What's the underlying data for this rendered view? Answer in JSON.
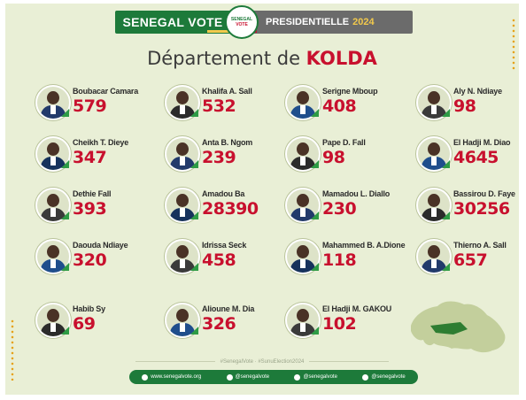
{
  "header": {
    "brand": "SENEGAL VOTE",
    "logo_top": "SENEGAL",
    "logo_bottom": "VOTE",
    "election": "PRESIDENTIELLE",
    "year": "2024",
    "flag_colors": [
      "#1d7a3a",
      "#f2c94c",
      "#c8102e"
    ]
  },
  "title": {
    "prefix": "Département de",
    "department": "KOLDA"
  },
  "candidates": [
    {
      "name": "Boubacar Camara",
      "votes": "579"
    },
    {
      "name": "Khalifa A. Sall",
      "votes": "532"
    },
    {
      "name": "Serigne Mboup",
      "votes": "408"
    },
    {
      "name": "Aly N. Ndiaye",
      "votes": "98"
    },
    {
      "name": "Cheikh T. Dieye",
      "votes": "347"
    },
    {
      "name": "Anta B. Ngom",
      "votes": "239"
    },
    {
      "name": "Pape D. Fall",
      "votes": "98"
    },
    {
      "name": "El Hadji M. Diao",
      "votes": "4645"
    },
    {
      "name": "Dethie Fall",
      "votes": "393"
    },
    {
      "name": "Amadou Ba",
      "votes": "28390"
    },
    {
      "name": "Mamadou L. Diallo",
      "votes": "230"
    },
    {
      "name": "Bassirou D. Faye",
      "votes": "30256"
    },
    {
      "name": "Daouda Ndiaye",
      "votes": "320"
    },
    {
      "name": "Idrissa Seck",
      "votes": "458"
    },
    {
      "name": "Mahammed B. A.Dione",
      "votes": "118"
    },
    {
      "name": "Thierno A. Sall",
      "votes": "657"
    },
    {
      "name": "Habib Sy",
      "votes": "69"
    },
    {
      "name": "Alioune M. Dia",
      "votes": "326"
    },
    {
      "name": "El Hadji M. GAKOU",
      "votes": "102"
    }
  ],
  "hashtags": "#SenegalVote · #SunuElection2024",
  "footer": {
    "website": "www.senegalvote.org",
    "facebook": "@senegalvote",
    "instagram": "@senegalvote",
    "twitter": "@senegalvote"
  },
  "colors": {
    "background": "#e9efd6",
    "brand_green": "#1d7a3a",
    "vote_red": "#c8102e",
    "accent_gold": "#e6a21a"
  }
}
